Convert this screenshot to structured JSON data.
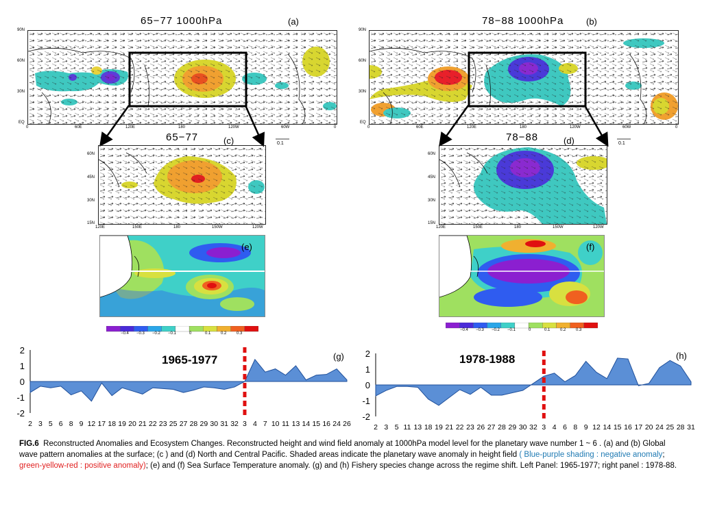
{
  "panels": {
    "a": {
      "title": "65−77 1000hPa",
      "letter": "(a)"
    },
    "b": {
      "title": "78−88 1000hPa",
      "letter": "(b)"
    },
    "c": {
      "title": "65−77",
      "letter": "(c)"
    },
    "d": {
      "title": "78−88",
      "letter": "(d)"
    },
    "e": {
      "letter": "(e)"
    },
    "f": {
      "letter": "(f)"
    },
    "g": {
      "letter": "(g)",
      "period": "1965-1977"
    },
    "h": {
      "letter": "(h)",
      "period": "1978-1988"
    }
  },
  "global_axes": {
    "y_ticks": [
      "90N",
      "60N",
      "30N",
      "EQ"
    ],
    "x_ticks": [
      "0",
      "60E",
      "120E",
      "180",
      "120W",
      "60W",
      "0"
    ],
    "vector_ref": "0.1"
  },
  "regional_axes": {
    "y_ticks": [
      "60N",
      "45N",
      "30N",
      "15N"
    ],
    "x_ticks": [
      "120E",
      "150E",
      "180",
      "150W",
      "120W"
    ]
  },
  "colorbar": {
    "neg_labels": [
      "−0.4",
      "−0.3",
      "−0.2",
      "−0.1"
    ],
    "pos_labels": [
      "0",
      "0.1",
      "0.2",
      "0.3"
    ],
    "neg_colors": [
      "#8b1fd0",
      "#4a2bd8",
      "#2f5cf0",
      "#2aa6e8",
      "#3fd0c8"
    ],
    "pos_colors": [
      "#9fe060",
      "#d8e040",
      "#f0b030",
      "#f06020",
      "#e01010"
    ]
  },
  "chart_data": [
    {
      "type": "area",
      "title": "1965-1977",
      "x_tick_labels": [
        "2",
        "3",
        "5",
        "6",
        "8",
        "9",
        "12",
        "17",
        "18",
        "19",
        "20",
        "21",
        "22",
        "23",
        "25",
        "27",
        "28",
        "29",
        "30",
        "31",
        "32",
        "3",
        "4",
        "7",
        "10",
        "11",
        "13",
        "14",
        "15",
        "16",
        "24",
        "26"
      ],
      "values": [
        -0.7,
        -0.3,
        -0.4,
        -0.3,
        -0.85,
        -0.6,
        -1.25,
        -0.1,
        -0.9,
        -0.4,
        -0.6,
        -0.8,
        -0.4,
        -0.45,
        -0.5,
        -0.7,
        -0.55,
        -0.35,
        -0.4,
        -0.5,
        -0.35,
        0.0,
        1.4,
        0.6,
        0.8,
        0.4,
        1.0,
        0.1,
        0.4,
        0.45,
        0.8,
        0.1
      ],
      "regime_shift_index": 21,
      "ylim": [
        -2,
        2
      ],
      "y_ticks": [
        -2,
        -1,
        0,
        1,
        2
      ]
    },
    {
      "type": "area",
      "title": "1978-1988",
      "x_tick_labels": [
        "2",
        "3",
        "5",
        "11",
        "13",
        "18",
        "19",
        "21",
        "22",
        "23",
        "26",
        "27",
        "28",
        "29",
        "30",
        "32",
        "3",
        "4",
        "6",
        "8",
        "9",
        "12",
        "14",
        "15",
        "16",
        "17",
        "20",
        "24",
        "25",
        "28",
        "31"
      ],
      "values": [
        -0.7,
        -0.35,
        -0.1,
        -0.1,
        -0.15,
        -0.9,
        -1.3,
        -0.8,
        -0.3,
        -0.6,
        -0.15,
        -0.65,
        -0.65,
        -0.5,
        -0.35,
        0.1,
        0.55,
        0.75,
        0.2,
        0.6,
        1.5,
        0.8,
        0.4,
        1.7,
        1.65,
        -0.05,
        0.1,
        1.1,
        1.55,
        1.2,
        0.2
      ],
      "regime_shift_index": 16,
      "ylim": [
        -2,
        2
      ],
      "y_ticks": [
        -2,
        -1,
        0,
        1,
        2
      ]
    }
  ],
  "caption": {
    "label": "FIG.6",
    "text1": "Reconstructed Anomalies and Ecosystem Changes.  Reconstructed  height and wind field anomaly  at  1000hPa model  level for the planetary wave number 1 ~ 6 .  (a) and (b) Global wave pattern anomalies at the surface; (c ) and (d) North and Central Pacific. Shaded areas indicate the planetary wave anomaly in height field ",
    "blue": "( Blue-purple shading : negative anomaly",
    "sep": "; ",
    "red": "green-yellow-red : positive anomaly)",
    "text2": ";  (e) and (f) Sea Surface Temperature anomaly. (g) and (h) Fishery species change across the regime shift. Left Panel: 1965-1977; right panel : 1978-88."
  }
}
